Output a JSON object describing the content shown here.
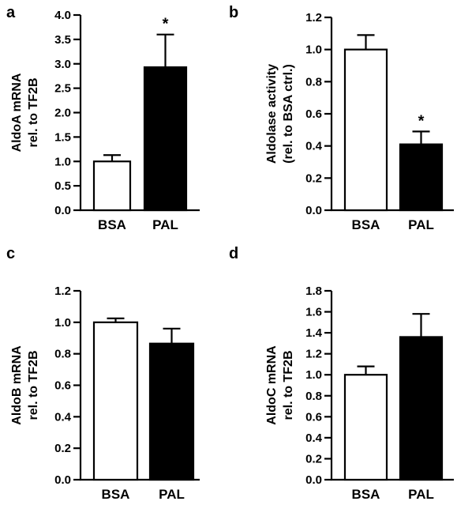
{
  "chart_data": [
    {
      "type": "bar",
      "panel": "a",
      "categories": [
        "BSA",
        "PAL"
      ],
      "values": [
        1.0,
        2.93
      ],
      "errors": [
        0.13,
        0.67
      ],
      "bar_colors": [
        "#ffffff",
        "#000000"
      ],
      "significance": [
        "",
        "*"
      ],
      "ylabel": [
        "AldoA mRNA",
        "rel. to TF2B"
      ],
      "ylim": [
        0,
        4.0
      ],
      "yticks": [
        "0.0",
        "0.5",
        "1.0",
        "1.5",
        "2.0",
        "2.5",
        "3.0",
        "3.5",
        "4.0"
      ],
      "grid": false
    },
    {
      "type": "bar",
      "panel": "b",
      "categories": [
        "BSA",
        "PAL"
      ],
      "values": [
        1.0,
        0.41
      ],
      "errors": [
        0.09,
        0.08
      ],
      "bar_colors": [
        "#ffffff",
        "#000000"
      ],
      "significance": [
        "",
        "*"
      ],
      "ylabel": [
        "Aldolase activity",
        "(rel. to BSA ctrl.)"
      ],
      "ylim": [
        0,
        1.2
      ],
      "yticks": [
        "0.0",
        "0.2",
        "0.4",
        "0.6",
        "0.8",
        "1.0",
        "1.2"
      ],
      "grid": false
    },
    {
      "type": "bar",
      "panel": "c",
      "categories": [
        "BSA",
        "PAL"
      ],
      "values": [
        1.0,
        0.865
      ],
      "errors": [
        0.025,
        0.095
      ],
      "bar_colors": [
        "#ffffff",
        "#000000"
      ],
      "significance": [
        "",
        ""
      ],
      "ylabel": [
        "AldoB mRNA",
        "rel. to TF2B"
      ],
      "ylim": [
        0,
        1.2
      ],
      "yticks": [
        "0.0",
        "0.2",
        "0.4",
        "0.6",
        "0.8",
        "1.0",
        "1.2"
      ],
      "grid": false
    },
    {
      "type": "bar",
      "panel": "d",
      "categories": [
        "BSA",
        "PAL"
      ],
      "values": [
        1.0,
        1.36
      ],
      "errors": [
        0.08,
        0.22
      ],
      "bar_colors": [
        "#ffffff",
        "#000000"
      ],
      "significance": [
        "",
        ""
      ],
      "ylabel": [
        "AldoC mRNA",
        "rel. to TF2B"
      ],
      "ylim": [
        0,
        1.8
      ],
      "yticks": [
        "0.0",
        "0.2",
        "0.4",
        "0.6",
        "0.8",
        "1.0",
        "1.2",
        "1.4",
        "1.6",
        "1.8"
      ],
      "grid": false
    }
  ]
}
